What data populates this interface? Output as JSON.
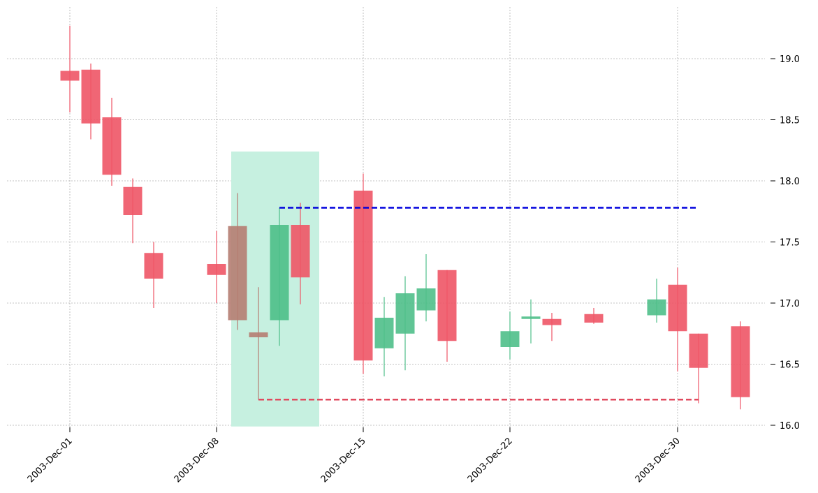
{
  "chart_data": {
    "type": "candlestick",
    "title": "",
    "xlabel": "",
    "ylabel": "",
    "ylim": [
      15.98,
      19.42
    ],
    "x_tick_labels": [
      {
        "day": 0,
        "label": "2003-Dec-01"
      },
      {
        "day": 7,
        "label": "2003-Dec-08"
      },
      {
        "day": 14,
        "label": "2003-Dec-15"
      },
      {
        "day": 21,
        "label": "2003-Dec-22"
      },
      {
        "day": 29,
        "label": "2003-Dec-30"
      }
    ],
    "y_ticks": [
      16.0,
      16.5,
      17.0,
      17.5,
      18.0,
      18.5,
      19.0
    ],
    "y_tick_labels": [
      "16.0",
      "16.5",
      "17.0",
      "17.5",
      "18.0",
      "18.5",
      "19.0"
    ],
    "candles": [
      {
        "date": "2003-12-01",
        "day": 0,
        "open": 18.9,
        "high": 19.27,
        "low": 18.56,
        "close": 18.82
      },
      {
        "date": "2003-12-02",
        "day": 1,
        "open": 18.91,
        "high": 18.96,
        "low": 18.34,
        "close": 18.47
      },
      {
        "date": "2003-12-03",
        "day": 2,
        "open": 18.52,
        "high": 18.68,
        "low": 17.96,
        "close": 18.05
      },
      {
        "date": "2003-12-04",
        "day": 3,
        "open": 17.95,
        "high": 18.02,
        "low": 17.49,
        "close": 17.72
      },
      {
        "date": "2003-12-05",
        "day": 4,
        "open": 17.41,
        "high": 17.5,
        "low": 16.96,
        "close": 17.2
      },
      {
        "date": "2003-12-08",
        "day": 5,
        "open": 17.32,
        "high": 17.59,
        "low": 17.0,
        "close": 17.23
      },
      {
        "date": "2003-12-09",
        "day": 6,
        "open": 17.63,
        "high": 17.9,
        "low": 16.78,
        "close": 16.86
      },
      {
        "date": "2003-12-10",
        "day": 7,
        "open": 16.76,
        "high": 17.13,
        "low": 16.21,
        "close": 16.72
      },
      {
        "date": "2003-12-11",
        "day": 8,
        "open": 16.86,
        "high": 17.78,
        "low": 16.65,
        "close": 17.64
      },
      {
        "date": "2003-12-12",
        "day": 9,
        "open": 17.64,
        "high": 17.82,
        "low": 16.99,
        "close": 17.21
      },
      {
        "date": "2003-12-15",
        "day": 10,
        "open": 17.92,
        "high": 18.06,
        "low": 16.42,
        "close": 16.53
      },
      {
        "date": "2003-12-16",
        "day": 11,
        "open": 16.63,
        "high": 17.05,
        "low": 16.4,
        "close": 16.88
      },
      {
        "date": "2003-12-17",
        "day": 12,
        "open": 16.75,
        "high": 17.22,
        "low": 16.45,
        "close": 17.08
      },
      {
        "date": "2003-12-18",
        "day": 13,
        "open": 16.94,
        "high": 17.4,
        "low": 16.85,
        "close": 17.12
      },
      {
        "date": "2003-12-19",
        "day": 14,
        "open": 17.27,
        "high": 17.27,
        "low": 16.52,
        "close": 16.69
      },
      {
        "date": "2003-12-22",
        "day": 15,
        "open": 16.64,
        "high": 16.93,
        "low": 16.54,
        "close": 16.77
      },
      {
        "date": "2003-12-23",
        "day": 16,
        "open": 16.87,
        "high": 17.03,
        "low": 16.67,
        "close": 16.89
      },
      {
        "date": "2003-12-24",
        "day": 17,
        "open": 16.87,
        "high": 16.92,
        "low": 16.69,
        "close": 16.82
      },
      {
        "date": "2003-12-26",
        "day": 18,
        "open": 16.91,
        "high": 16.96,
        "low": 16.83,
        "close": 16.84
      },
      {
        "date": "2003-12-29",
        "day": 19,
        "open": 16.9,
        "high": 17.2,
        "low": 16.84,
        "close": 17.03
      },
      {
        "date": "2003-12-30",
        "day": 20,
        "open": 17.15,
        "high": 17.29,
        "low": 16.44,
        "close": 16.77
      },
      {
        "date": "2003-12-31",
        "day": 21,
        "open": 16.75,
        "high": 16.75,
        "low": 16.18,
        "close": 16.47
      },
      {
        "date": "2004-01-02",
        "day": 22,
        "open": 16.81,
        "high": 16.85,
        "low": 16.13,
        "close": 16.23
      }
    ],
    "highlight": {
      "from_day": 6,
      "to_day": 8,
      "ymin": 15.99,
      "ymax": 18.24,
      "color": "#c6f0e0"
    },
    "resistance_line": {
      "value": 17.78,
      "from_day": 8,
      "to_day": 21,
      "color": "#0000dd"
    },
    "support_line": {
      "value": 16.21,
      "from_day": 7,
      "to_day": 21,
      "color": "#e04a5e"
    },
    "grid": true,
    "colors": {
      "up": "#4fbf8a",
      "down": "#ee5566",
      "highlight_overlay": "#b57d72",
      "highlight_up": "#4cbf88"
    }
  }
}
